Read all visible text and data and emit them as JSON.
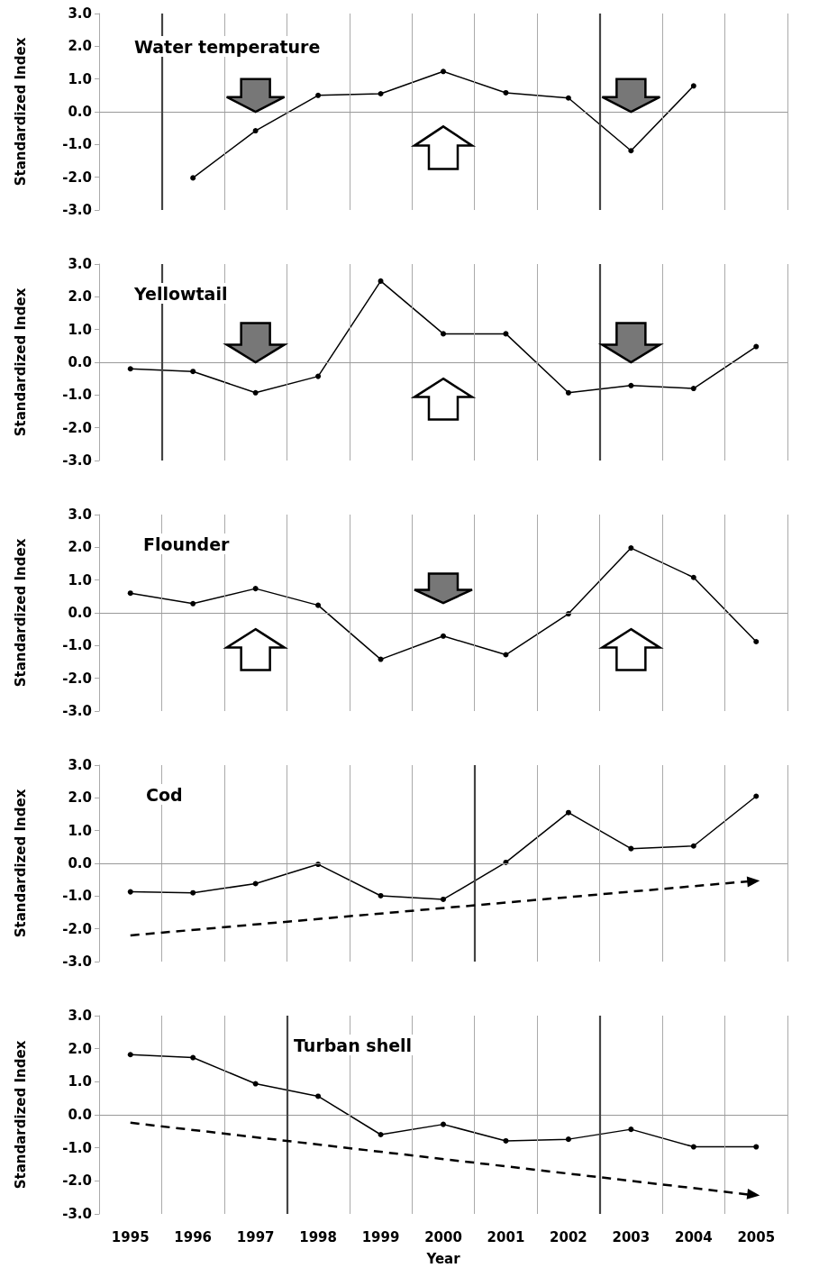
{
  "chart_data": [
    {
      "type": "line",
      "title": "Water temperature",
      "ylabel": "Standardized Index",
      "x": [
        1996,
        1997,
        1998,
        1999,
        2000,
        2001,
        2002,
        2003,
        2004
      ],
      "series": [
        {
          "color": "#000000",
          "values": [
            -2.02,
            -0.58,
            0.5,
            0.55,
            1.23,
            0.58,
            0.42,
            -1.19,
            0.79
          ]
        }
      ],
      "xlim": [
        1994.5,
        2005.5
      ],
      "xticks": [
        {
          "value": 1994.5,
          "label": null
        },
        1995,
        1996,
        {
          "value": 1996.5,
          "label": null
        },
        1997,
        {
          "value": 1997.5,
          "label": null
        },
        1998,
        {
          "value": 1998.5,
          "label": null
        },
        1999,
        {
          "value": 1999.5,
          "label": null
        },
        2000,
        {
          "value": 2000.5,
          "label": null
        },
        2001,
        {
          "value": 2001.5,
          "label": null
        },
        2002,
        2003,
        {
          "value": 2003.5,
          "label": null
        },
        2004,
        {
          "value": 2004.5,
          "label": null
        },
        2005,
        {
          "value": 2005.5,
          "label": null
        }
      ],
      "ylim": [
        -3,
        3
      ],
      "yticks": [
        {
          "value": -3,
          "label": "-3.0"
        },
        {
          "value": -2,
          "label": "-2.0"
        },
        {
          "value": -1,
          "label": "-1.0"
        },
        {
          "value": 0,
          "label": "0.0"
        },
        {
          "value": 1,
          "label": "1.0"
        },
        {
          "value": 2,
          "label": "2.0"
        },
        {
          "value": 3,
          "label": "3.0"
        }
      ],
      "ref_lines": [
        {
          "axis": "y",
          "value": 0,
          "color": "#999999"
        },
        {
          "axis": "x",
          "value": 1995.5,
          "color": "#444444"
        },
        {
          "axis": "x",
          "value": 2002.5,
          "color": "#444444"
        }
      ],
      "grid": "x",
      "marker": "circle",
      "line_style": "solid",
      "tick_labels": "y"
    },
    {
      "type": "line",
      "title": "Yellowtail",
      "ylabel": "Standardized Index",
      "x": [
        1995,
        1996,
        1997,
        1998,
        1999,
        2000,
        2001,
        2002,
        2003,
        2004,
        2005
      ],
      "series": [
        {
          "color": "#000000",
          "values": [
            -0.2,
            -0.28,
            -0.93,
            -0.43,
            2.48,
            0.87,
            0.87,
            -0.93,
            -0.71,
            -0.8,
            0.48
          ]
        }
      ],
      "xlim": [
        1994.5,
        2005.5
      ],
      "xticks": [
        {
          "value": 1994.5,
          "label": null
        },
        1995,
        1996,
        {
          "value": 1996.5,
          "label": null
        },
        1997,
        {
          "value": 1997.5,
          "label": null
        },
        1998,
        {
          "value": 1998.5,
          "label": null
        },
        1999,
        {
          "value": 1999.5,
          "label": null
        },
        2000,
        {
          "value": 2000.5,
          "label": null
        },
        2001,
        {
          "value": 2001.5,
          "label": null
        },
        2002,
        2003,
        {
          "value": 2003.5,
          "label": null
        },
        2004,
        {
          "value": 2004.5,
          "label": null
        },
        2005,
        {
          "value": 2005.5,
          "label": null
        }
      ],
      "ylim": [
        -3,
        3
      ],
      "yticks": [
        {
          "value": -3,
          "label": "-3.0"
        },
        {
          "value": -2,
          "label": "-2.0"
        },
        {
          "value": -1,
          "label": "-1.0"
        },
        {
          "value": 0,
          "label": "0.0"
        },
        {
          "value": 1,
          "label": "1.0"
        },
        {
          "value": 2,
          "label": "2.0"
        },
        {
          "value": 3,
          "label": "3.0"
        }
      ],
      "ref_lines": [
        {
          "axis": "y",
          "value": 0,
          "color": "#999999"
        },
        {
          "axis": "x",
          "value": 1995.5,
          "color": "#444444"
        },
        {
          "axis": "x",
          "value": 2002.5,
          "color": "#444444"
        }
      ],
      "grid": "x",
      "marker": "circle",
      "line_style": "solid",
      "tick_labels": "y"
    },
    {
      "type": "line",
      "title": "Flounder",
      "ylabel": "Standardized Index",
      "x": [
        1995,
        1996,
        1997,
        1998,
        1999,
        2000,
        2001,
        2002,
        2003,
        2004,
        2005
      ],
      "series": [
        {
          "color": "#000000",
          "values": [
            0.6,
            0.28,
            0.74,
            0.23,
            -1.42,
            -0.71,
            -1.28,
            -0.03,
            1.98,
            1.08,
            -0.88
          ]
        }
      ],
      "xlim": [
        1994.5,
        2005.5
      ],
      "xticks": [
        {
          "value": 1994.5,
          "label": null
        },
        1995,
        {
          "value": 1995.5,
          "label": null
        },
        1996,
        {
          "value": 1996.5,
          "label": null
        },
        1997,
        {
          "value": 1997.5,
          "label": null
        },
        1998,
        {
          "value": 1998.5,
          "label": null
        },
        1999,
        {
          "value": 1999.5,
          "label": null
        },
        2000,
        {
          "value": 2000.5,
          "label": null
        },
        2001,
        {
          "value": 2001.5,
          "label": null
        },
        2002,
        {
          "value": 2002.5,
          "label": null
        },
        2003,
        {
          "value": 2003.5,
          "label": null
        },
        2004,
        {
          "value": 2004.5,
          "label": null
        },
        2005,
        {
          "value": 2005.5,
          "label": null
        }
      ],
      "ylim": [
        -3,
        3
      ],
      "yticks": [
        {
          "value": -3,
          "label": "-3.0"
        },
        {
          "value": -2,
          "label": "-2.0"
        },
        {
          "value": -1,
          "label": "-1.0"
        },
        {
          "value": 0,
          "label": "0.0"
        },
        {
          "value": 1,
          "label": "1.0"
        },
        {
          "value": 2,
          "label": "2.0"
        },
        {
          "value": 3,
          "label": "3.0"
        }
      ],
      "ref_lines": [
        {
          "axis": "y",
          "value": 0,
          "color": "#999999"
        }
      ],
      "grid": "x",
      "marker": "circle",
      "line_style": "solid",
      "tick_labels": "y"
    },
    {
      "type": "line",
      "title": "Cod",
      "ylabel": "Standardized Index",
      "x": [
        1995,
        1996,
        1997,
        1998,
        1999,
        2000,
        2001,
        2002,
        2003,
        2004,
        2005
      ],
      "series": [
        {
          "color": "#000000",
          "values": [
            -0.87,
            -0.9,
            -0.62,
            -0.03,
            -0.99,
            -1.1,
            0.03,
            1.55,
            0.45,
            0.53,
            2.05
          ]
        }
      ],
      "xlim": [
        1994.5,
        2005.5
      ],
      "xticks": [
        {
          "value": 1994.5,
          "label": null
        },
        1995,
        {
          "value": 1995.5,
          "label": null
        },
        1996,
        {
          "value": 1996.5,
          "label": null
        },
        1997,
        {
          "value": 1997.5,
          "label": null
        },
        1998,
        {
          "value": 1998.5,
          "label": null
        },
        1999,
        {
          "value": 1999.5,
          "label": null
        },
        2000,
        {
          "value": 2000.5,
          "label": null
        },
        2001,
        {
          "value": 2001.5,
          "label": null
        },
        2002,
        {
          "value": 2002.5,
          "label": null
        },
        2003,
        {
          "value": 2003.5,
          "label": null
        },
        2004,
        {
          "value": 2004.5,
          "label": null
        },
        2005,
        {
          "value": 2005.5,
          "label": null
        }
      ],
      "ylim": [
        -3,
        3
      ],
      "yticks": [
        {
          "value": -3,
          "label": "-3.0"
        },
        {
          "value": -2,
          "label": "-2.0"
        },
        {
          "value": -1,
          "label": "-1.0"
        },
        {
          "value": 0,
          "label": "0.0"
        },
        {
          "value": 1,
          "label": "1.0"
        },
        {
          "value": 2,
          "label": "2.0"
        },
        {
          "value": 3,
          "label": "3.0"
        }
      ],
      "ref_lines": [
        {
          "axis": "y",
          "value": 0,
          "color": "#999999"
        },
        {
          "axis": "x",
          "value": 2000.5,
          "color": "#444444"
        }
      ],
      "grid": "x",
      "marker": "circle",
      "line_style": "solid",
      "tick_labels": "y"
    },
    {
      "type": "line",
      "title": "Turban shell",
      "ylabel": "Standardized Index",
      "xlabel": "Year",
      "x": [
        1995,
        1996,
        1997,
        1998,
        1999,
        2000,
        2001,
        2002,
        2003,
        2004,
        2005
      ],
      "series": [
        {
          "color": "#000000",
          "values": [
            1.82,
            1.73,
            0.94,
            0.56,
            -0.6,
            -0.29,
            -0.79,
            -0.74,
            -0.44,
            -0.97,
            -0.97
          ]
        }
      ],
      "xlim": [
        1994.5,
        2005.5
      ],
      "xticks": [
        {
          "value": 1994.5,
          "label": null
        },
        1995,
        {
          "value": 1995.5,
          "label": null
        },
        1996,
        {
          "value": 1996.5,
          "label": null
        },
        1997,
        1998,
        {
          "value": 1998.5,
          "label": null
        },
        1999,
        {
          "value": 1999.5,
          "label": null
        },
        2000,
        {
          "value": 2000.5,
          "label": null
        },
        2001,
        {
          "value": 2001.5,
          "label": null
        },
        2002,
        2003,
        {
          "value": 2003.5,
          "label": null
        },
        2004,
        {
          "value": 2004.5,
          "label": null
        },
        2005,
        {
          "value": 2005.5,
          "label": null
        }
      ],
      "ylim": [
        -3,
        3
      ],
      "yticks": [
        {
          "value": -3,
          "label": "-3.0"
        },
        {
          "value": -2,
          "label": "-2.0"
        },
        {
          "value": -1,
          "label": "-1.0"
        },
        {
          "value": 0,
          "label": "0.0"
        },
        {
          "value": 1,
          "label": "1.0"
        },
        {
          "value": 2,
          "label": "2.0"
        },
        {
          "value": 3,
          "label": "3.0"
        }
      ],
      "ref_lines": [
        {
          "axis": "y",
          "value": 0,
          "color": "#999999"
        },
        {
          "axis": "x",
          "value": 1997.5,
          "color": "#444444"
        },
        {
          "axis": "x",
          "value": 2002.5,
          "color": "#444444"
        }
      ],
      "grid": "x",
      "marker": "circle",
      "line_style": "solid"
    }
  ]
}
